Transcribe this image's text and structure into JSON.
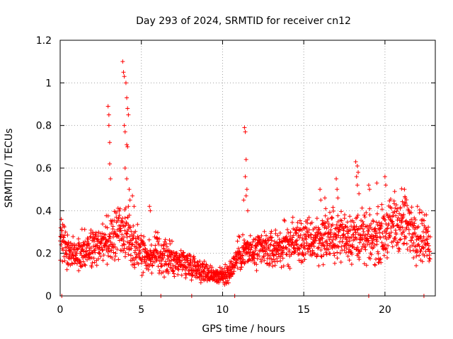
{
  "chart_data": {
    "type": "scatter",
    "title": "Day 293 of 2024, SRMTID for receiver cn12",
    "xlabel": "GPS time / hours",
    "ylabel": "SRMTID / TECUs",
    "xlim": [
      0,
      23.1
    ],
    "ylim": [
      0,
      1.2
    ],
    "x_ticks": [
      0,
      5,
      10,
      15,
      20
    ],
    "x_tick_labels": [
      "0",
      "5",
      "10",
      "15",
      "20"
    ],
    "y_ticks": [
      0,
      0.2,
      0.4,
      0.6,
      0.8,
      1.0,
      1.2
    ],
    "y_tick_labels": [
      "0",
      "0.2",
      "0.4",
      "0.6",
      "0.8",
      "1",
      "1.2"
    ],
    "grid": true,
    "marker": "+",
    "marker_color": "#ff0000",
    "series": [
      {
        "name": "SRMTID",
        "trend": [
          [
            0.0,
            0.28
          ],
          [
            0.5,
            0.2
          ],
          [
            1.0,
            0.2
          ],
          [
            1.5,
            0.23
          ],
          [
            2.0,
            0.22
          ],
          [
            2.5,
            0.24
          ],
          [
            3.0,
            0.26
          ],
          [
            3.5,
            0.3
          ],
          [
            4.0,
            0.3
          ],
          [
            4.5,
            0.25
          ],
          [
            5.0,
            0.22
          ],
          [
            5.5,
            0.18
          ],
          [
            6.0,
            0.2
          ],
          [
            6.5,
            0.18
          ],
          [
            7.0,
            0.17
          ],
          [
            7.5,
            0.16
          ],
          [
            8.0,
            0.15
          ],
          [
            8.5,
            0.13
          ],
          [
            9.0,
            0.11
          ],
          [
            9.5,
            0.1
          ],
          [
            10.0,
            0.09
          ],
          [
            10.5,
            0.12
          ],
          [
            11.0,
            0.2
          ],
          [
            11.5,
            0.21
          ],
          [
            12.0,
            0.2
          ],
          [
            12.5,
            0.22
          ],
          [
            13.0,
            0.21
          ],
          [
            13.5,
            0.23
          ],
          [
            14.0,
            0.24
          ],
          [
            14.5,
            0.26
          ],
          [
            15.0,
            0.25
          ],
          [
            15.5,
            0.26
          ],
          [
            16.0,
            0.27
          ],
          [
            16.5,
            0.28
          ],
          [
            17.0,
            0.28
          ],
          [
            17.5,
            0.29
          ],
          [
            18.0,
            0.28
          ],
          [
            18.5,
            0.28
          ],
          [
            19.0,
            0.26
          ],
          [
            19.5,
            0.28
          ],
          [
            20.0,
            0.3
          ],
          [
            20.5,
            0.33
          ],
          [
            21.0,
            0.35
          ],
          [
            21.5,
            0.32
          ],
          [
            22.0,
            0.3
          ],
          [
            22.5,
            0.27
          ],
          [
            22.8,
            0.24
          ]
        ],
        "spikes": [
          [
            2.95,
            0.89
          ],
          [
            3.0,
            0.85
          ],
          [
            3.0,
            0.8
          ],
          [
            3.05,
            0.72
          ],
          [
            3.05,
            0.62
          ],
          [
            3.1,
            0.55
          ],
          [
            3.85,
            1.1
          ],
          [
            3.9,
            1.05
          ],
          [
            3.95,
            1.03
          ],
          [
            4.05,
            1.0
          ],
          [
            4.1,
            0.93
          ],
          [
            4.15,
            0.88
          ],
          [
            4.2,
            0.85
          ],
          [
            3.95,
            0.8
          ],
          [
            4.0,
            0.77
          ],
          [
            4.1,
            0.71
          ],
          [
            4.15,
            0.7
          ],
          [
            4.0,
            0.6
          ],
          [
            4.1,
            0.55
          ],
          [
            4.25,
            0.5
          ],
          [
            4.3,
            0.45
          ],
          [
            4.2,
            0.42
          ],
          [
            4.45,
            0.47
          ],
          [
            4.55,
            0.42
          ],
          [
            5.5,
            0.42
          ],
          [
            5.55,
            0.4
          ],
          [
            11.35,
            0.79
          ],
          [
            11.4,
            0.77
          ],
          [
            11.45,
            0.64
          ],
          [
            11.4,
            0.56
          ],
          [
            11.5,
            0.5
          ],
          [
            11.45,
            0.47
          ],
          [
            11.3,
            0.45
          ],
          [
            11.55,
            0.4
          ],
          [
            16.0,
            0.5
          ],
          [
            16.05,
            0.45
          ],
          [
            16.3,
            0.46
          ],
          [
            16.35,
            0.41
          ],
          [
            17.0,
            0.55
          ],
          [
            17.05,
            0.5
          ],
          [
            17.1,
            0.46
          ],
          [
            18.2,
            0.63
          ],
          [
            18.3,
            0.61
          ],
          [
            18.35,
            0.58
          ],
          [
            18.25,
            0.56
          ],
          [
            18.3,
            0.52
          ],
          [
            18.4,
            0.48
          ],
          [
            19.0,
            0.52
          ],
          [
            19.05,
            0.5
          ],
          [
            19.5,
            0.53
          ],
          [
            20.0,
            0.56
          ],
          [
            20.05,
            0.52
          ],
          [
            20.6,
            0.49
          ],
          [
            21.2,
            0.5
          ],
          [
            21.25,
            0.46
          ],
          [
            22.0,
            0.42
          ]
        ],
        "zeros": [
          0.1,
          6.2,
          8.1,
          10.75,
          19.0,
          22.4
        ]
      }
    ]
  }
}
